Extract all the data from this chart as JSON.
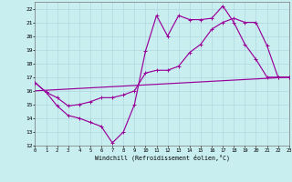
{
  "xlabel": "Windchill (Refroidissement éolien,°C)",
  "xlim": [
    0,
    23
  ],
  "ylim": [
    12,
    22.5
  ],
  "xticks": [
    0,
    1,
    2,
    3,
    4,
    5,
    6,
    7,
    8,
    9,
    10,
    11,
    12,
    13,
    14,
    15,
    16,
    17,
    18,
    19,
    20,
    21,
    22,
    23
  ],
  "yticks": [
    12,
    13,
    14,
    15,
    16,
    17,
    18,
    19,
    20,
    21,
    22
  ],
  "background_color": "#c8eef0",
  "grid_color": "#b0d8e0",
  "line_color": "#990099",
  "line1_x": [
    0,
    1,
    2,
    3,
    4,
    5,
    6,
    7,
    8,
    9,
    10,
    11,
    12,
    13,
    14,
    15,
    16,
    17,
    18,
    19,
    20,
    21,
    22,
    23
  ],
  "line1_y": [
    16.6,
    15.9,
    14.9,
    14.2,
    14.0,
    13.7,
    13.4,
    12.2,
    13.0,
    15.0,
    18.9,
    21.5,
    20.0,
    21.5,
    21.2,
    21.2,
    21.3,
    22.2,
    21.0,
    19.4,
    18.3,
    17.0,
    17.0,
    17.0
  ],
  "line2_x": [
    0,
    1,
    2,
    3,
    4,
    5,
    6,
    7,
    8,
    9,
    10,
    11,
    12,
    13,
    14,
    15,
    16,
    17,
    18,
    19,
    20,
    21,
    22,
    23
  ],
  "line2_y": [
    16.6,
    15.9,
    15.5,
    14.9,
    15.0,
    15.2,
    15.5,
    15.5,
    15.7,
    16.0,
    17.3,
    17.5,
    17.5,
    17.8,
    18.8,
    19.4,
    20.5,
    21.0,
    21.3,
    21.0,
    21.0,
    19.3,
    17.0,
    17.0
  ],
  "line3_x": [
    0,
    23
  ],
  "line3_y": [
    16.0,
    17.0
  ]
}
